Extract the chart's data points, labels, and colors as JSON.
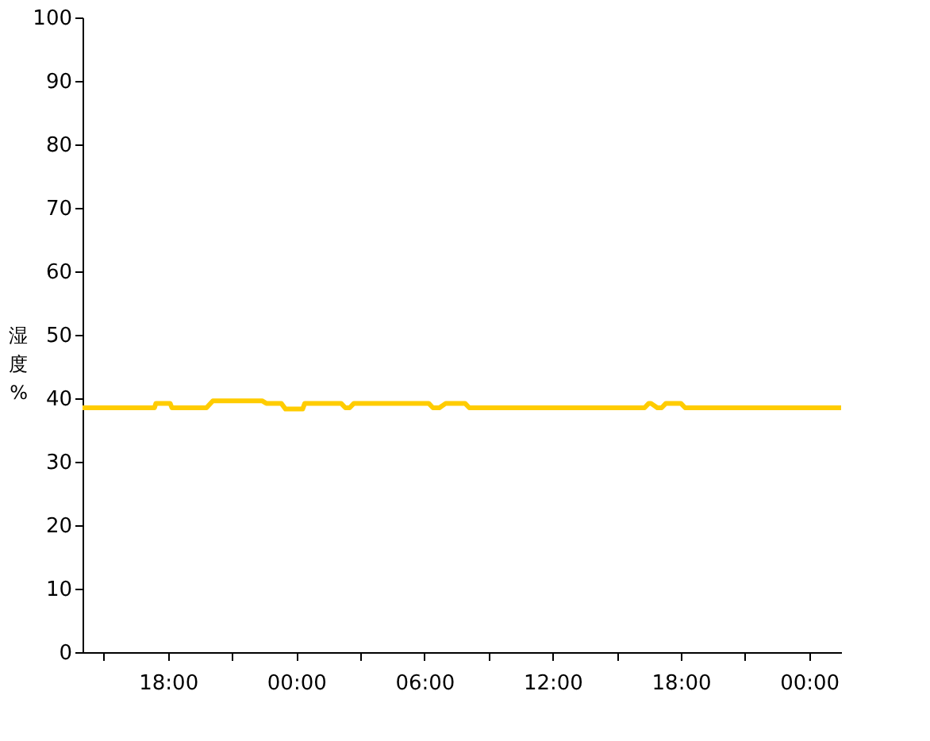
{
  "chart_data": {
    "type": "line",
    "ylabel": "湿度%",
    "x": [
      "2000-01-01T14:00",
      "2000-01-01T17:22",
      "2000-01-01T17:26",
      "2000-01-01T18:06",
      "2000-01-01T18:11",
      "2000-01-01T19:48",
      "2000-01-01T20:06",
      "2000-01-01T22:24",
      "2000-01-01T22:36",
      "2000-01-01T23:18",
      "2000-01-01T23:30",
      "2000-01-02T00:18",
      "2000-01-02T00:24",
      "2000-01-02T02:06",
      "2000-01-02T02:18",
      "2000-01-02T02:30",
      "2000-01-02T02:42",
      "2000-01-02T06:12",
      "2000-01-02T06:24",
      "2000-01-02T06:42",
      "2000-01-02T07:00",
      "2000-01-02T07:54",
      "2000-01-02T08:06",
      "2000-01-02T16:18",
      "2000-01-02T16:30",
      "2000-01-02T16:36",
      "2000-01-02T16:54",
      "2000-01-02T17:06",
      "2000-01-02T17:18",
      "2000-01-02T18:00",
      "2000-01-02T18:12",
      "2000-01-03T01:30"
    ],
    "series": [
      {
        "color": "#ffcc00",
        "values": [
          38.5,
          38.5,
          39.2,
          39.2,
          38.5,
          38.5,
          39.6,
          39.6,
          39.2,
          39.2,
          38.3,
          38.3,
          39.2,
          39.2,
          38.5,
          38.5,
          39.2,
          39.2,
          38.5,
          38.5,
          39.2,
          39.2,
          38.5,
          38.5,
          39.2,
          39.2,
          38.5,
          38.5,
          39.2,
          39.2,
          38.5,
          38.5
        ]
      }
    ],
    "xlim": [
      "2000-01-01T14:00",
      "2000-01-03T01:30"
    ],
    "xticks": [
      {
        "value": "2000-01-01T15:00",
        "label": null
      },
      {
        "value": "2000-01-01T18:00",
        "label": "18:00"
      },
      {
        "value": "2000-01-01T21:00",
        "label": null
      },
      {
        "value": "2000-01-02T00:00",
        "label": "00:00"
      },
      {
        "value": "2000-01-02T03:00",
        "label": null
      },
      {
        "value": "2000-01-02T06:00",
        "label": "06:00"
      },
      {
        "value": "2000-01-02T09:00",
        "label": null
      },
      {
        "value": "2000-01-02T12:00",
        "label": "12:00"
      },
      {
        "value": "2000-01-02T15:00",
        "label": null
      },
      {
        "value": "2000-01-02T18:00",
        "label": "18:00"
      },
      {
        "value": "2000-01-02T21:00",
        "label": null
      },
      {
        "value": "2000-01-03T00:00",
        "label": "00:00"
      }
    ],
    "ylim": [
      0,
      100
    ],
    "yticks": [
      0,
      10,
      20,
      30,
      40,
      50,
      60,
      70,
      80,
      90,
      100
    ],
    "grid": false,
    "legend": false,
    "marker": "none",
    "line_style": "solid"
  }
}
